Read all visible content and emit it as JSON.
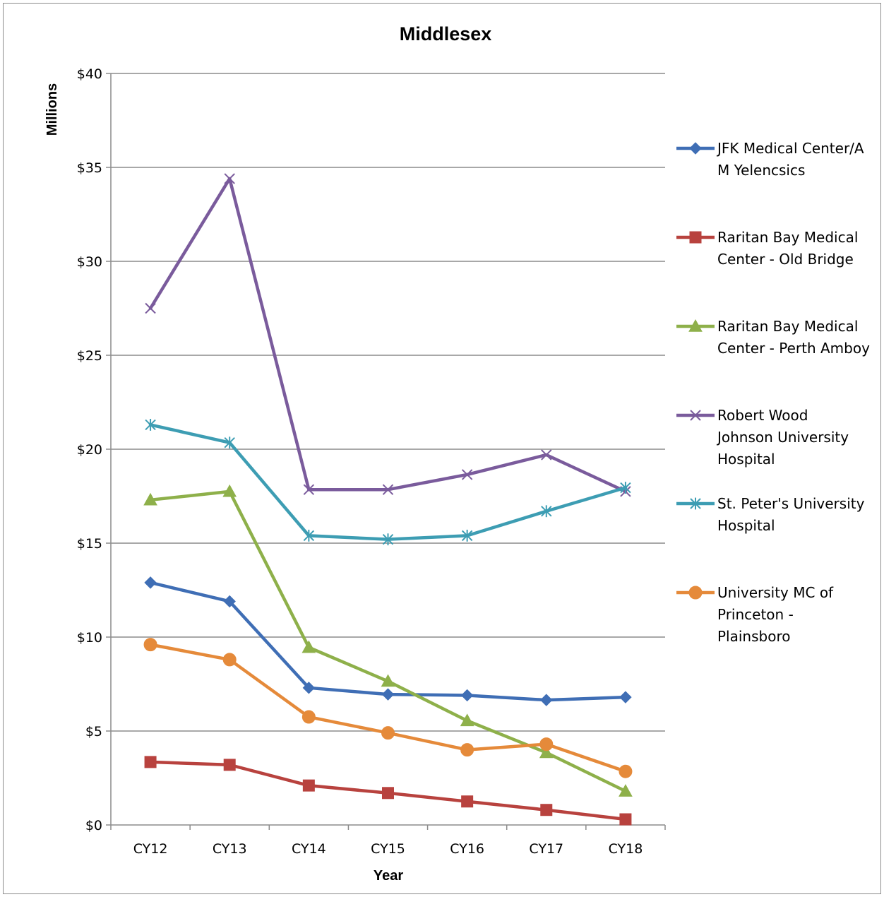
{
  "chart_data": {
    "type": "line",
    "title": "Middlesex",
    "xlabel": "Year",
    "ylabel": "Millions",
    "categories": [
      "CY12",
      "CY13",
      "CY14",
      "CY15",
      "CY16",
      "CY17",
      "CY18"
    ],
    "ylim": [
      0,
      40
    ],
    "yticks": [
      0,
      5,
      10,
      15,
      20,
      25,
      30,
      35,
      40
    ],
    "ytick_labels": [
      "$0",
      "$5",
      "$10",
      "$15",
      "$20",
      "$25",
      "$30",
      "$35",
      "$40"
    ],
    "grid": true,
    "legend_position": "right",
    "series": [
      {
        "name": "JFK Medical Center/A M Yelencsics",
        "legend_lines": [
          "JFK Medical Center/A",
          "M Yelencsics"
        ],
        "color": "#3F6EB5",
        "marker": "diamond",
        "values": [
          12.9,
          11.9,
          7.3,
          6.95,
          6.9,
          6.65,
          6.8
        ]
      },
      {
        "name": "Raritan Bay Medical Center - Old Bridge",
        "legend_lines": [
          "Raritan Bay Medical",
          "Center - Old Bridge"
        ],
        "color": "#B8423E",
        "marker": "square",
        "values": [
          3.35,
          3.2,
          2.1,
          1.7,
          1.25,
          0.8,
          0.3
        ]
      },
      {
        "name": "Raritan Bay Medical Center - Perth Amboy",
        "legend_lines": [
          "Raritan Bay Medical",
          "Center - Perth Amboy"
        ],
        "color": "#8EB04A",
        "marker": "triangle",
        "values": [
          17.3,
          17.75,
          9.45,
          7.65,
          5.55,
          3.85,
          1.8
        ]
      },
      {
        "name": "Robert Wood Johnson University Hospital",
        "legend_lines": [
          "Robert Wood",
          "Johnson University",
          "Hospital"
        ],
        "color": "#7A5B9C",
        "marker": "x",
        "values": [
          27.5,
          34.4,
          17.85,
          17.85,
          18.65,
          19.7,
          17.75
        ]
      },
      {
        "name": "St. Peter's University Hospital",
        "legend_lines": [
          "St. Peter's University",
          "Hospital"
        ],
        "color": "#3D9DB3",
        "marker": "star",
        "values": [
          21.3,
          20.35,
          15.4,
          15.2,
          15.4,
          16.7,
          17.95
        ]
      },
      {
        "name": "University MC of Princeton - Plainsboro",
        "legend_lines": [
          "University MC of",
          "Princeton -",
          "Plainsboro"
        ],
        "color": "#E58A3A",
        "marker": "circle",
        "values": [
          9.6,
          8.8,
          5.75,
          4.9,
          4.0,
          4.3,
          2.85
        ]
      }
    ]
  }
}
